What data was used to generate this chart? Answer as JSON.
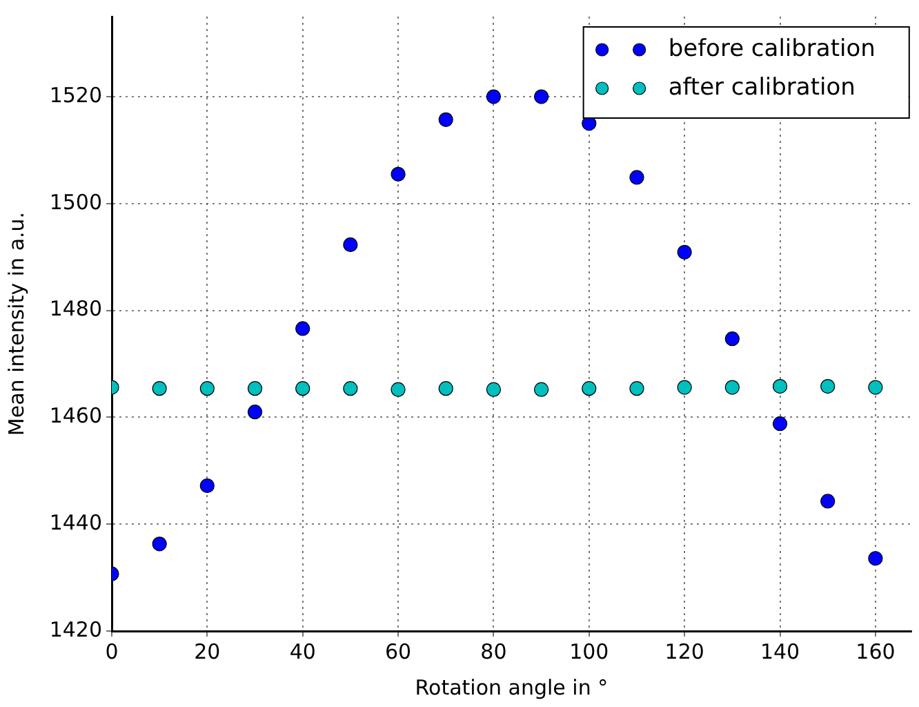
{
  "chart_data": {
    "type": "scatter",
    "xlabel": "Rotation angle in °",
    "ylabel": "Mean intensity in a.u.",
    "x": [
      0,
      10,
      20,
      30,
      40,
      50,
      60,
      70,
      80,
      90,
      100,
      110,
      120,
      130,
      140,
      150,
      160
    ],
    "series": [
      {
        "name": "before calibration",
        "color": "#0000ff",
        "values": [
          1430.7,
          1436.3,
          1447.2,
          1461.0,
          1476.6,
          1492.3,
          1505.5,
          1515.7,
          1520.0,
          1520.0,
          1515.0,
          1504.9,
          1490.9,
          1474.7,
          1458.8,
          1444.3,
          1433.6
        ]
      },
      {
        "name": "after calibration",
        "color": "#00bfbf",
        "values": [
          1465.6,
          1465.4,
          1465.4,
          1465.4,
          1465.4,
          1465.4,
          1465.2,
          1465.4,
          1465.2,
          1465.2,
          1465.4,
          1465.4,
          1465.6,
          1465.6,
          1465.8,
          1465.8,
          1465.6
        ]
      }
    ],
    "xlim": [
      0,
      167.5
    ],
    "ylim": [
      1420,
      1535
    ],
    "xticks": [
      0,
      20,
      40,
      60,
      80,
      100,
      120,
      140,
      160
    ],
    "yticks": [
      1420,
      1440,
      1460,
      1480,
      1500,
      1520
    ],
    "grid": true,
    "legend": "top right",
    "marker": "circle"
  }
}
